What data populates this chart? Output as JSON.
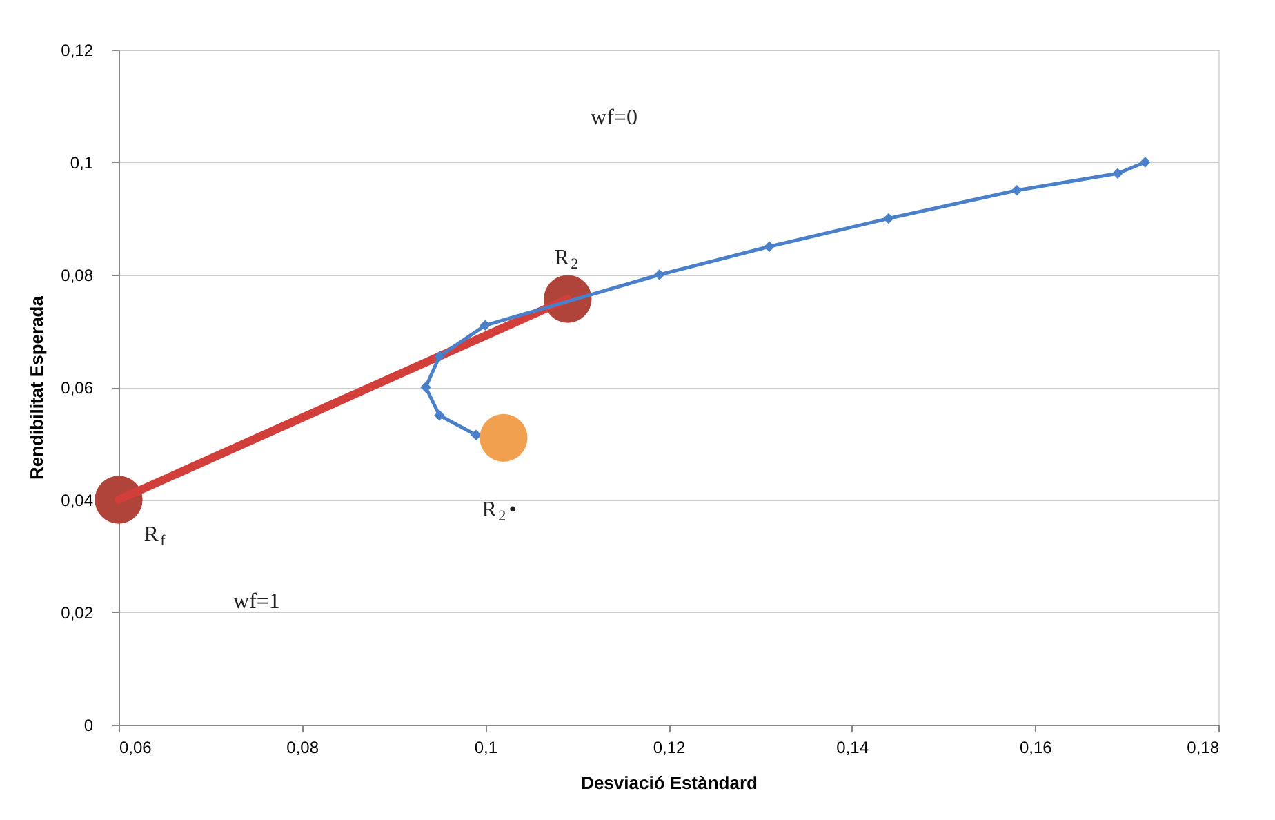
{
  "chart_data": {
    "type": "line",
    "xlabel": "Desviació Estàndard",
    "ylabel": "Rendibilitat Esperada",
    "xlim": [
      0.06,
      0.18
    ],
    "ylim": [
      0,
      0.12
    ],
    "xticks": [
      {
        "value": 0.06,
        "label": "0,06"
      },
      {
        "value": 0.08,
        "label": "0,08"
      },
      {
        "value": 0.1,
        "label": "0,1"
      },
      {
        "value": 0.12,
        "label": "0,12"
      },
      {
        "value": 0.14,
        "label": "0,14"
      },
      {
        "value": 0.16,
        "label": "0,16"
      },
      {
        "value": 0.18,
        "label": "0,18"
      }
    ],
    "yticks": [
      0,
      {
        "value": 0.02,
        "label": "0,02"
      },
      {
        "value": 0.04,
        "label": "0,04"
      },
      {
        "value": 0.06,
        "label": "0,06"
      },
      {
        "value": 0.08,
        "label": "0,08"
      },
      {
        "value": 0.1,
        "label": "0,1"
      },
      {
        "value": 0.12,
        "label": "0,12"
      }
    ],
    "grid": "y",
    "series": [
      {
        "type": "scatter",
        "color": "#b0433a",
        "marker": "circle",
        "x": [
          0.06,
          0.109
        ],
        "values": [
          0.04,
          0.0757
        ]
      },
      {
        "color": "#d23f3a",
        "x": [
          0.06,
          0.109
        ],
        "values": [
          0.04,
          0.0757
        ]
      },
      {
        "color": "#4a7fc9",
        "marker": "diamond",
        "x": [
          0.172,
          0.169,
          0.158,
          0.144,
          0.131,
          0.119,
          0.1,
          0.095,
          0.0935,
          0.095,
          0.099
        ],
        "values": [
          0.1,
          0.098,
          0.095,
          0.09,
          0.085,
          0.08,
          0.071,
          0.0655,
          0.06,
          0.055,
          0.0515
        ]
      },
      {
        "type": "scatter",
        "color": "#f0a04f",
        "marker": "circle",
        "x": [
          0.102
        ],
        "values": [
          0.051
        ]
      }
    ],
    "annotations": [
      {
        "text": "R$_{2}$",
        "x": 0.109,
        "y": 0.0757
      },
      {
        "text": "R$_{f}$",
        "x": 0.06,
        "y": 0.04
      },
      {
        "text": "R$_{2}$•",
        "x": 0.102,
        "y": 0.051
      },
      "wf=1",
      "wf=0"
    ]
  }
}
